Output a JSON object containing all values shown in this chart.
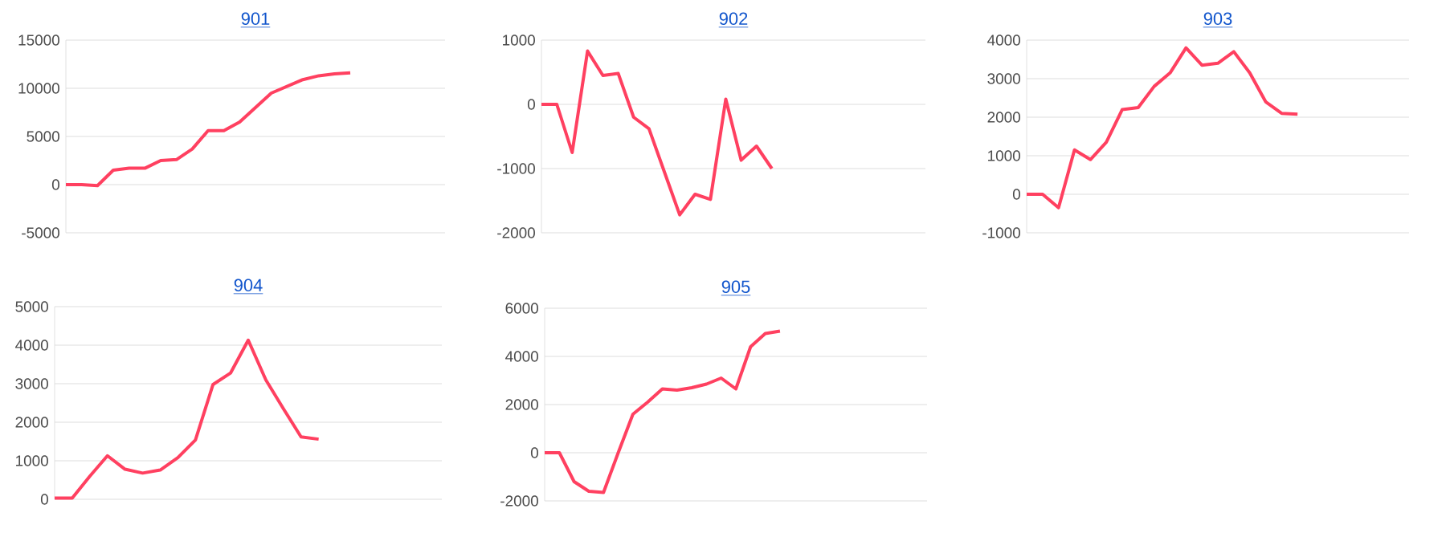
{
  "chart_data": [
    {
      "type": "line",
      "title": "901",
      "categories": [
        null,
        null,
        null,
        null,
        null,
        null,
        null,
        null,
        null,
        null,
        null,
        null,
        null,
        null,
        null,
        null,
        null,
        null,
        null,
        null,
        null,
        null,
        null,
        null,
        null
      ],
      "values": [
        0,
        0,
        -100,
        1500,
        1700,
        1700,
        2500,
        2600,
        3700,
        5600,
        5600,
        6500,
        8000,
        9500,
        10200,
        10900,
        11300,
        11500,
        11600,
        null,
        null,
        null,
        null,
        null,
        null
      ],
      "color": "#ff4060",
      "ylim": [
        -5000,
        15000
      ],
      "yticks": [
        -5000,
        0,
        5000,
        10000,
        15000
      ],
      "grid": "y",
      "marker": "none",
      "line_style": "solid"
    },
    {
      "type": "line",
      "title": "902",
      "categories": [
        null,
        null,
        null,
        null,
        null,
        null,
        null,
        null,
        null,
        null,
        null,
        null,
        null,
        null,
        null,
        null,
        null,
        null,
        null,
        null,
        null,
        null,
        null,
        null,
        null,
        null
      ],
      "values": [
        0,
        0,
        -750,
        830,
        450,
        480,
        -200,
        -380,
        -1050,
        -1720,
        -1400,
        -1480,
        80,
        -870,
        -650,
        -1000,
        null,
        null,
        null,
        null,
        null,
        null,
        null,
        null,
        null,
        null
      ],
      "color": "#ff4060",
      "ylim": [
        -2000,
        1000
      ],
      "yticks": [
        -2000,
        -1000,
        0,
        1000
      ],
      "grid": "y",
      "marker": "none",
      "line_style": "solid"
    },
    {
      "type": "line",
      "title": "903",
      "categories": [
        null,
        null,
        null,
        null,
        null,
        null,
        null,
        null,
        null,
        null,
        null,
        null,
        null,
        null,
        null,
        null,
        null,
        null,
        null,
        null,
        null,
        null,
        null,
        null,
        null
      ],
      "values": [
        0,
        0,
        -350,
        1150,
        900,
        1350,
        2200,
        2250,
        2800,
        3150,
        3800,
        3350,
        3400,
        3700,
        3150,
        2400,
        2100,
        2080,
        null,
        null,
        null,
        null,
        null,
        null,
        null
      ],
      "color": "#ff4060",
      "ylim": [
        -1000,
        4000
      ],
      "yticks": [
        -1000,
        0,
        1000,
        2000,
        3000,
        4000
      ],
      "grid": "y",
      "marker": "none",
      "line_style": "solid"
    },
    {
      "type": "line",
      "title": "904",
      "categories": [
        null,
        null,
        null,
        null,
        null,
        null,
        null,
        null,
        null,
        null,
        null,
        null,
        null,
        null,
        null,
        null,
        null,
        null,
        null,
        null,
        null,
        null,
        null
      ],
      "values": [
        30,
        30,
        600,
        1130,
        780,
        680,
        760,
        1080,
        1540,
        2980,
        3280,
        4130,
        3100,
        2350,
        1620,
        1560,
        null,
        null,
        null,
        null,
        null,
        null,
        null
      ],
      "color": "#ff4060",
      "ylim": [
        0,
        5000
      ],
      "yticks": [
        0,
        1000,
        2000,
        3000,
        4000,
        5000
      ],
      "grid": "y",
      "marker": "none",
      "line_style": "solid"
    },
    {
      "type": "line",
      "title": "905",
      "categories": [
        null,
        null,
        null,
        null,
        null,
        null,
        null,
        null,
        null,
        null,
        null,
        null,
        null,
        null,
        null,
        null,
        null,
        null,
        null,
        null,
        null,
        null,
        null,
        null,
        null,
        null,
        null
      ],
      "values": [
        0,
        0,
        -1200,
        -1600,
        -1650,
        0,
        1600,
        2100,
        2650,
        2600,
        2700,
        2850,
        3100,
        2650,
        4400,
        4950,
        5050,
        null,
        null,
        null,
        null,
        null,
        null,
        null,
        null,
        null,
        null
      ],
      "color": "#ff4060",
      "ylim": [
        -2000,
        6000
      ],
      "yticks": [
        -2000,
        0,
        2000,
        4000,
        6000
      ],
      "grid": "y",
      "marker": "none",
      "line_style": "solid"
    }
  ]
}
